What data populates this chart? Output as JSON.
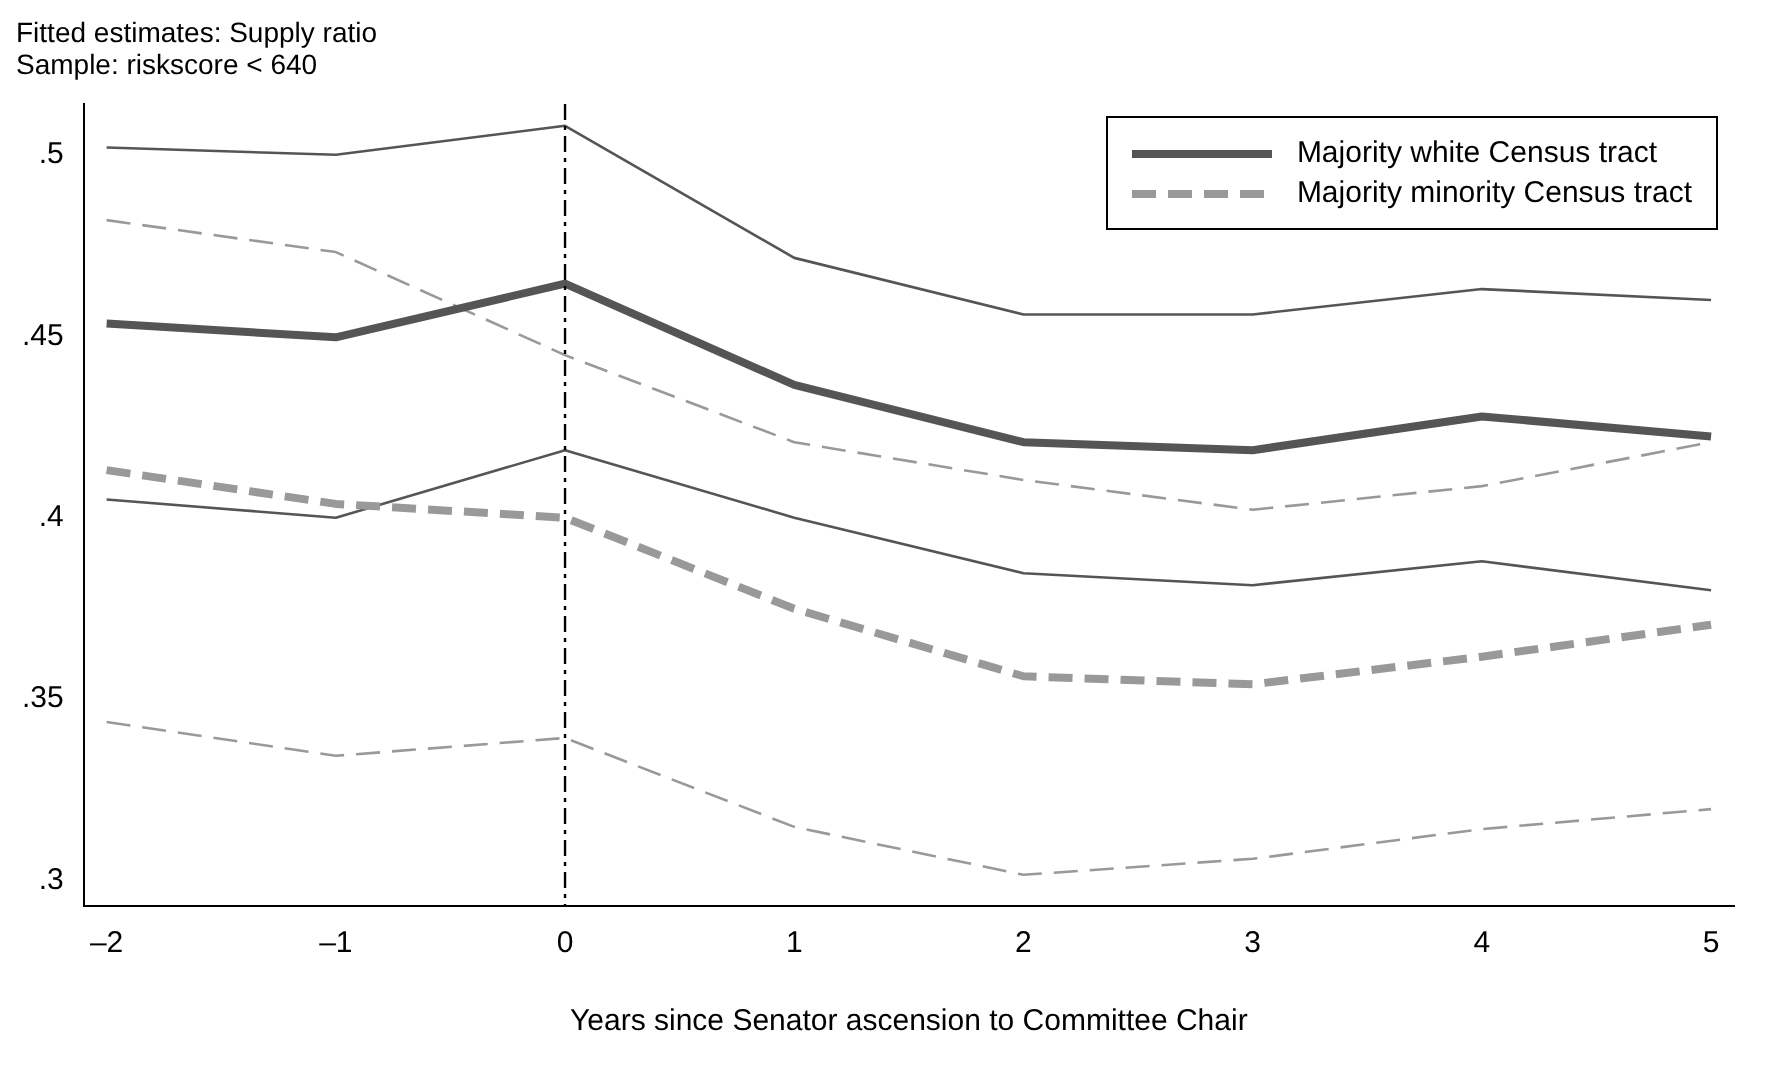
{
  "chart_data": {
    "type": "line",
    "title": "Fitted estimates: Supply ratio",
    "subtitle": "Sample: riskscore < 640",
    "xlabel": "Years since Senator ascension to Committee Chair",
    "x": [
      -2,
      -1,
      0,
      1,
      2,
      3,
      4,
      5
    ],
    "series": [
      {
        "color": "#555555",
        "line_style": "solid",
        "values": [
          0.502,
          0.5,
          0.508,
          0.4716,
          0.456,
          0.456,
          0.463,
          0.46
        ]
      },
      {
        "color": "#555555",
        "line_style": "solid",
        "values": [
          0.405,
          0.4,
          0.4186,
          0.4,
          0.3847,
          0.3814,
          0.388,
          0.38
        ]
      },
      {
        "color": "#999999",
        "line_style": "dashed",
        "values": [
          0.482,
          0.4732,
          0.4448,
          0.4208,
          0.4104,
          0.4022,
          0.4087,
          0.4208
        ]
      },
      {
        "color": "#999999",
        "line_style": "dashed",
        "values": [
          0.3437,
          0.3344,
          0.3393,
          0.3148,
          0.3016,
          0.306,
          0.3142,
          0.3197
        ]
      },
      {
        "name": "Majority white Census tract",
        "color": "#555555",
        "line_style": "solid",
        "values": [
          0.4535,
          0.4497,
          0.4645,
          0.4366,
          0.4208,
          0.4186,
          0.4279,
          0.4224
        ]
      },
      {
        "name": "Majority minority Census tract",
        "color": "#999999",
        "line_style": "dashed",
        "values": [
          0.4131,
          0.4038,
          0.4,
          0.3749,
          0.3563,
          0.3541,
          0.3617,
          0.3705
        ]
      }
    ],
    "xlim": [
      -2.1,
      5.1
    ],
    "xticks": [
      {
        "value": -2,
        "label": "–2"
      },
      {
        "value": -1,
        "label": "–1"
      },
      0,
      1,
      2,
      3,
      4,
      5
    ],
    "ylim": [
      0.293,
      0.514
    ],
    "yticks": [
      {
        "value": 0.3,
        "label": ".3"
      },
      {
        "value": 0.35,
        "label": ".35"
      },
      {
        "value": 0.4,
        "label": ".4"
      },
      {
        "value": 0.45,
        "label": ".45"
      },
      {
        "value": 0.5,
        "label": ".5"
      }
    ],
    "ref_lines": [
      {
        "axis": "x",
        "value": 0,
        "color": "#000000",
        "line_style": "dashed"
      }
    ],
    "grid": false,
    "legend": "top right"
  }
}
